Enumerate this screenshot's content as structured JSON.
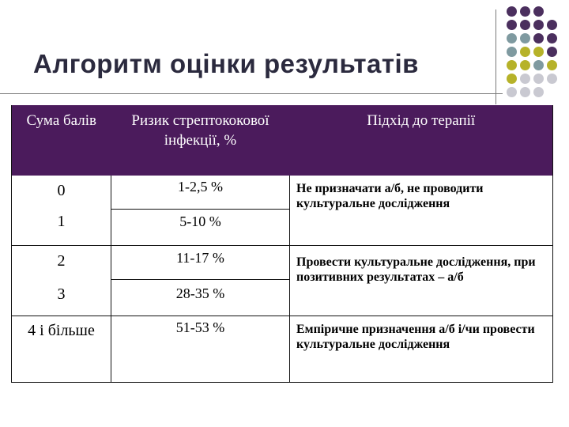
{
  "title": "Алгоритм оцінки результатів",
  "table": {
    "headers": [
      "Сума балів",
      "Ризик стрептококової інфекції, %",
      "Підхід до терапії"
    ],
    "rows": [
      {
        "score": "0",
        "risk": "1-2,5 %"
      },
      {
        "score": "1",
        "risk": "5-10 %"
      },
      {
        "score": "2",
        "risk": "11-17 %"
      },
      {
        "score": "3",
        "risk": "28-35 %"
      },
      {
        "score": "4 і більше",
        "risk": "51-53 %"
      }
    ],
    "approaches": [
      "Не призначати а/б, не проводити культуральне дослідження",
      "Провести культуральне дослідження, при позитивних результатах – а/б",
      "Емпіричне призначення а/б і/чи провести культуральне дослідження"
    ]
  },
  "decor": {
    "dot_colors": {
      "purple": "#4b2f5e",
      "teal": "#7f9aa0",
      "olive": "#b6b229",
      "gray": "#c9c9d1"
    },
    "dot_grid": [
      [
        "purple",
        "purple",
        "purple",
        "",
        ""
      ],
      [
        "purple",
        "purple",
        "purple",
        "purple",
        ""
      ],
      [
        "teal",
        "teal",
        "purple",
        "purple",
        ""
      ],
      [
        "teal",
        "olive",
        "olive",
        "purple",
        ""
      ],
      [
        "olive",
        "olive",
        "teal",
        "olive",
        ""
      ],
      [
        "olive",
        "gray",
        "gray",
        "gray",
        ""
      ],
      [
        "gray",
        "gray",
        "gray",
        "",
        ""
      ]
    ]
  }
}
